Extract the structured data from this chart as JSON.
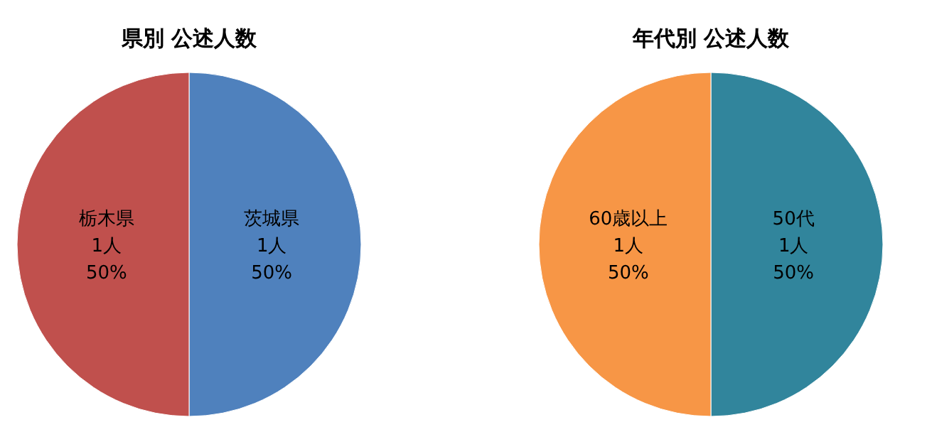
{
  "chart_data": [
    {
      "type": "pie",
      "title": "県別 公述人数",
      "categories": [
        "茨城県",
        "栃木県"
      ],
      "values": [
        1,
        1
      ],
      "colors": [
        "#4f81bd",
        "#c0504d"
      ],
      "value_labels": [
        "1人\n50%",
        "1人\n50%"
      ]
    },
    {
      "type": "pie",
      "title": "年代別 公述人数",
      "categories": [
        "50代",
        "60歳以上"
      ],
      "values": [
        1,
        1
      ],
      "colors": [
        "#31859c",
        "#f79646"
      ],
      "value_labels": [
        "1人\n50%",
        "1人\n50%"
      ]
    }
  ]
}
